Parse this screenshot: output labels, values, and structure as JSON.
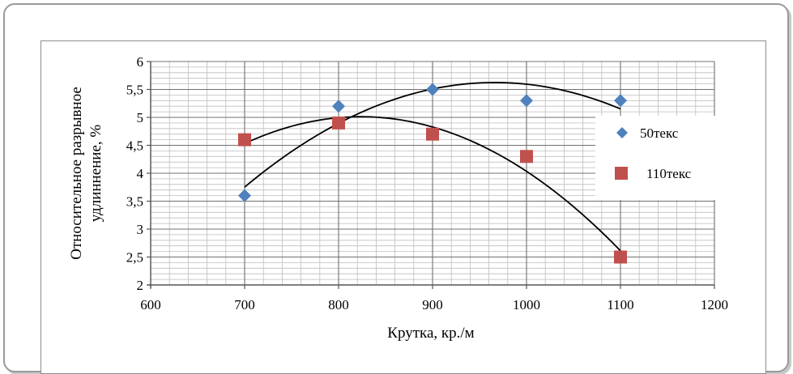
{
  "chart_data": {
    "type": "scatter",
    "title": "",
    "xlabel": "Крутка, кр./м",
    "ylabel_line1": "Относительное разрывное",
    "ylabel_line2": "удлиннение, %",
    "xlim": [
      600,
      1200
    ],
    "ylim": [
      2,
      6
    ],
    "x_ticks": [
      600,
      700,
      800,
      900,
      1000,
      1100,
      1200
    ],
    "y_ticks": [
      2,
      2.5,
      3,
      3.5,
      4,
      4.5,
      5,
      5.5,
      6
    ],
    "y_tick_labels": [
      "2",
      "2,5",
      "3",
      "3,5",
      "4",
      "4,5",
      "5",
      "5,5",
      "6"
    ],
    "grid": true,
    "legend_position": "right",
    "series": [
      {
        "name": "50текс",
        "marker": "diamond",
        "color": "#4f81bd",
        "x": [
          700,
          800,
          900,
          1000,
          1100
        ],
        "y": [
          3.6,
          5.2,
          5.5,
          5.3,
          5.3
        ],
        "trendline": "polynomial-2"
      },
      {
        "name": "110текс",
        "marker": "square",
        "color": "#c0504d",
        "x": [
          700,
          800,
          900,
          1000,
          1100
        ],
        "y": [
          4.6,
          4.9,
          4.7,
          4.3,
          2.5
        ],
        "trendline": "polynomial-2"
      }
    ]
  }
}
